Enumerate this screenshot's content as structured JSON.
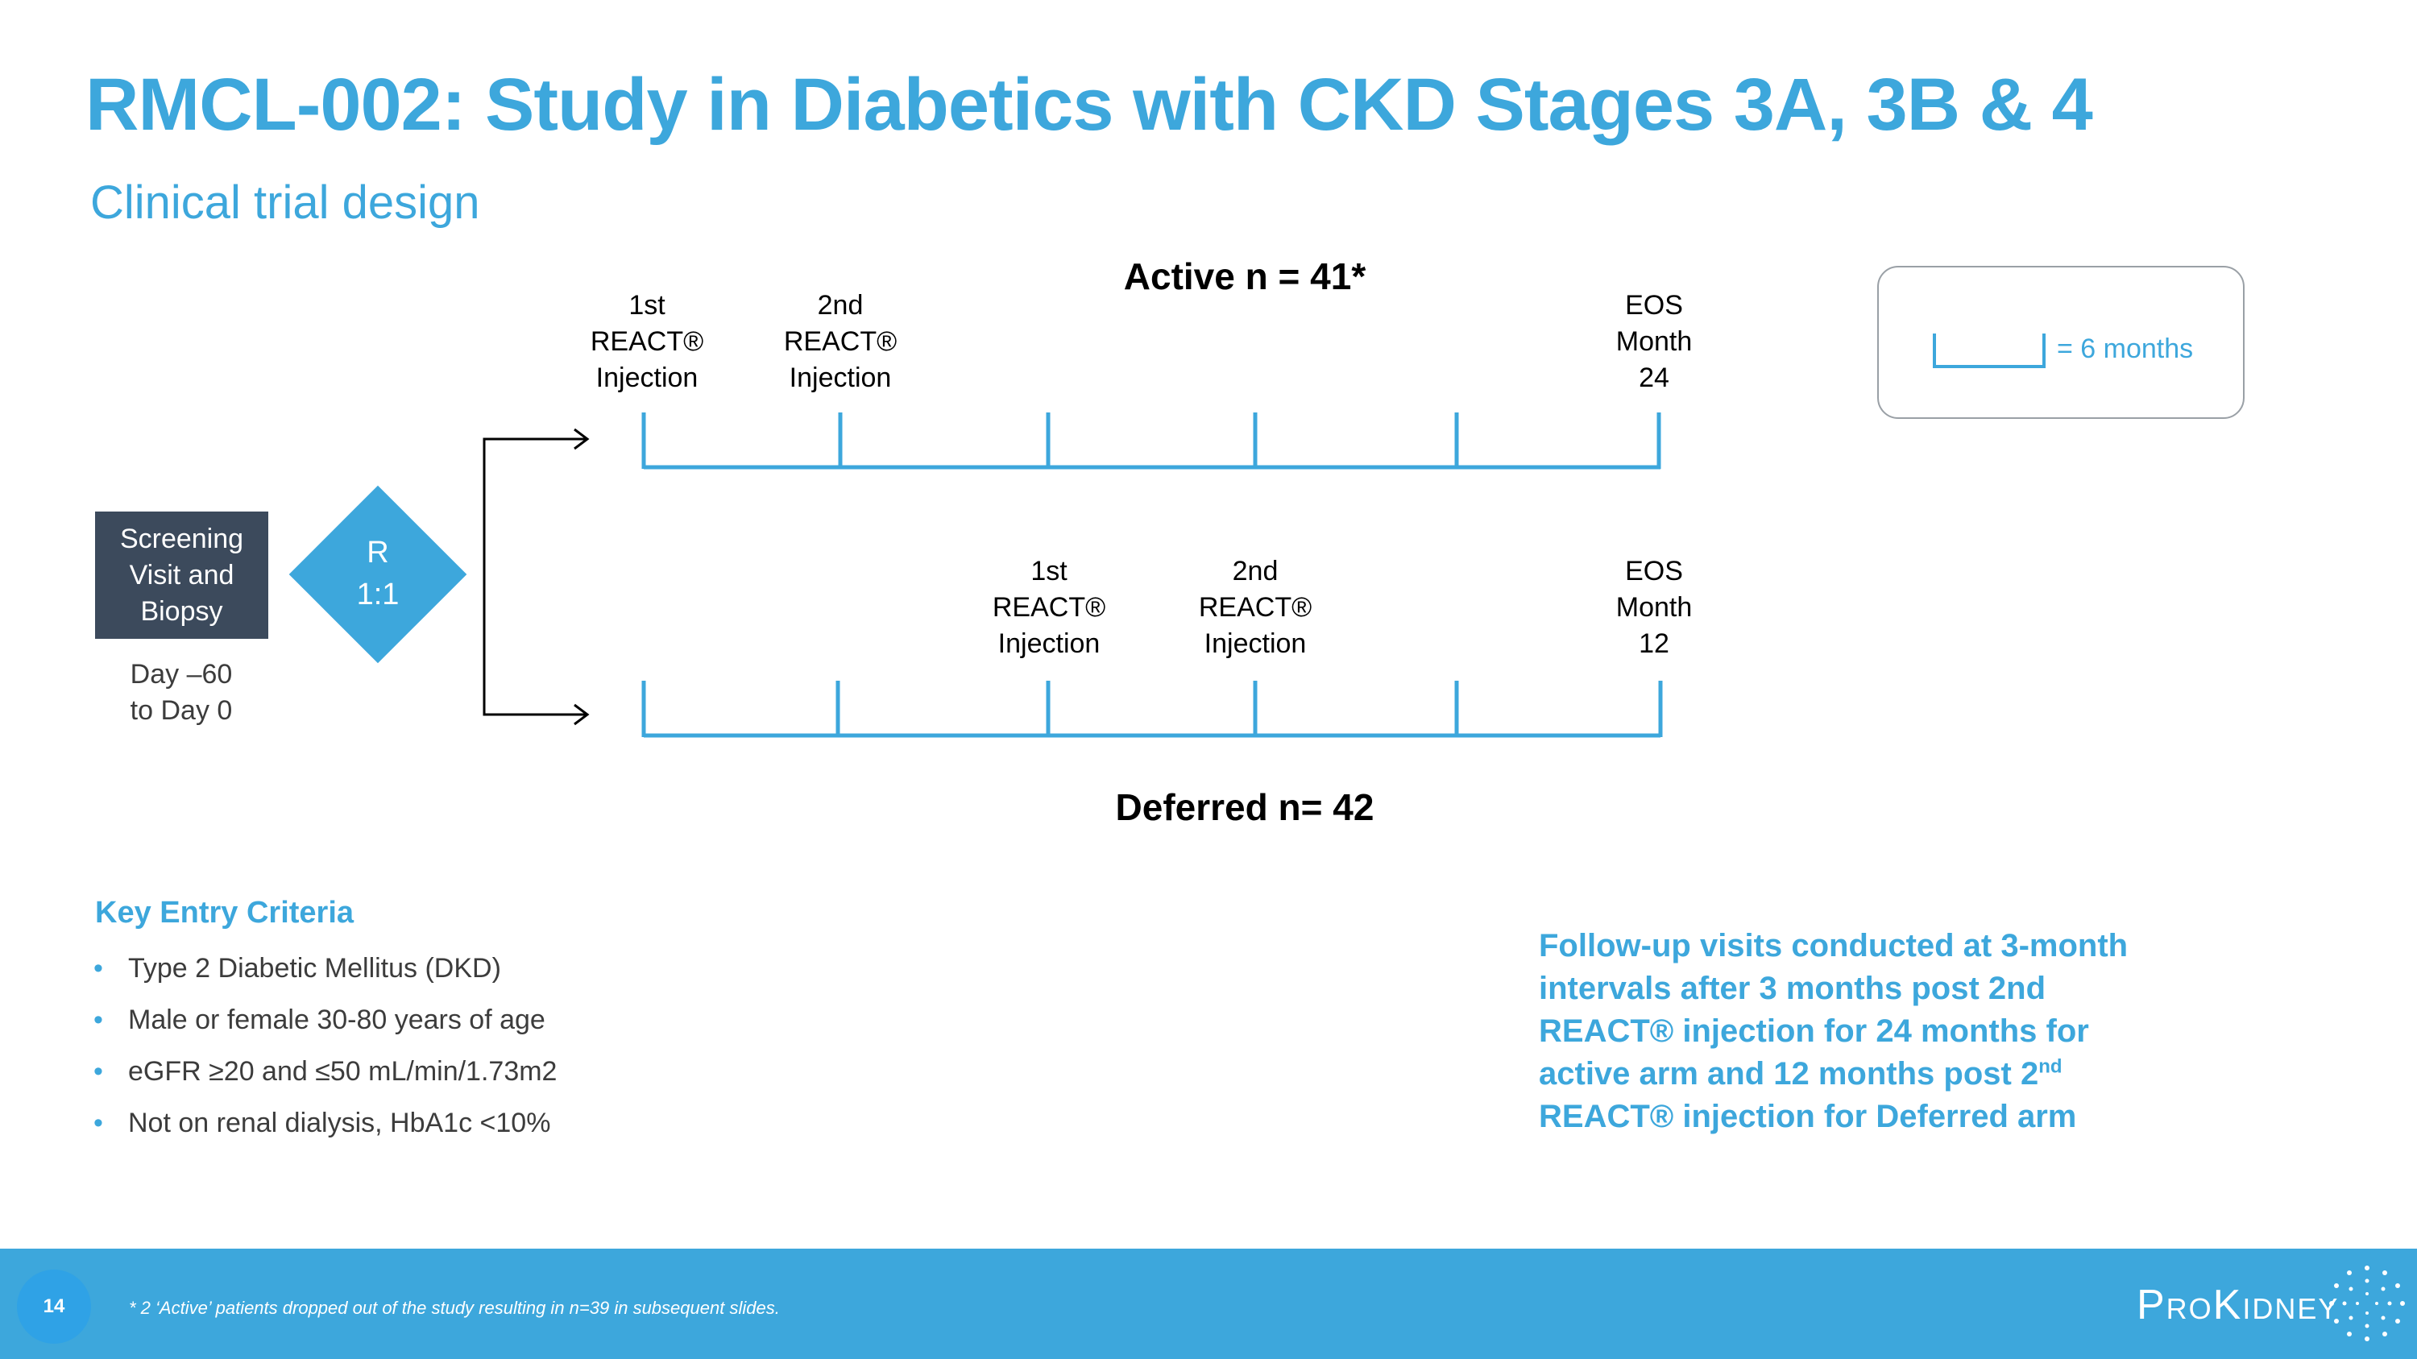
{
  "slide": {
    "title": "RMCL-002: Study in Diabetics with CKD Stages 3A, 3B & 4",
    "subtitle": "Clinical trial design"
  },
  "screening": {
    "line1": "Screening",
    "line2": "Visit and",
    "line3": "Biopsy",
    "day_line1": "Day –60",
    "day_line2": "to Day 0"
  },
  "randomization": {
    "line1": "R",
    "line2": "1:1"
  },
  "active_arm": {
    "title": "Active n = 41*",
    "first_injection": [
      "1st",
      "REACT®",
      "Injection"
    ],
    "second_injection": [
      "2nd",
      "REACT®",
      "Injection"
    ],
    "eos": [
      "EOS",
      "Month",
      "24"
    ]
  },
  "deferred_arm": {
    "title": "Deferred n= 42",
    "first_injection": [
      "1st",
      "REACT®",
      "Injection"
    ],
    "second_injection": [
      "2nd",
      "REACT®",
      "Injection"
    ],
    "eos": [
      "EOS",
      "Month",
      "12"
    ]
  },
  "legend": {
    "text": "= 6 months"
  },
  "criteria": {
    "heading": "Key Entry Criteria",
    "items": [
      "Type 2 Diabetic Mellitus (DKD)",
      "Male or female 30-80 years of age",
      "eGFR  ≥20 and ≤50 mL/min/1.73m2",
      "Not on renal dialysis, HbA1c  <10%"
    ]
  },
  "followup": {
    "line1": "Follow-up visits conducted at 3-month",
    "line2": "intervals after 3 months post 2nd",
    "line3": "REACT® injection for 24 months for",
    "line4a": "active arm and 12 months post 2",
    "line4sup": "nd",
    "line5": "REACT® injection for Deferred arm"
  },
  "footer": {
    "page_number": "14",
    "footnote": "* 2 ‘Active’ patients dropped out of the study resulting in n=39 in subsequent slides.",
    "logo": "ProKidney"
  },
  "colors": {
    "accent": "#3da7dc",
    "dark_box": "#3c4a5c"
  }
}
